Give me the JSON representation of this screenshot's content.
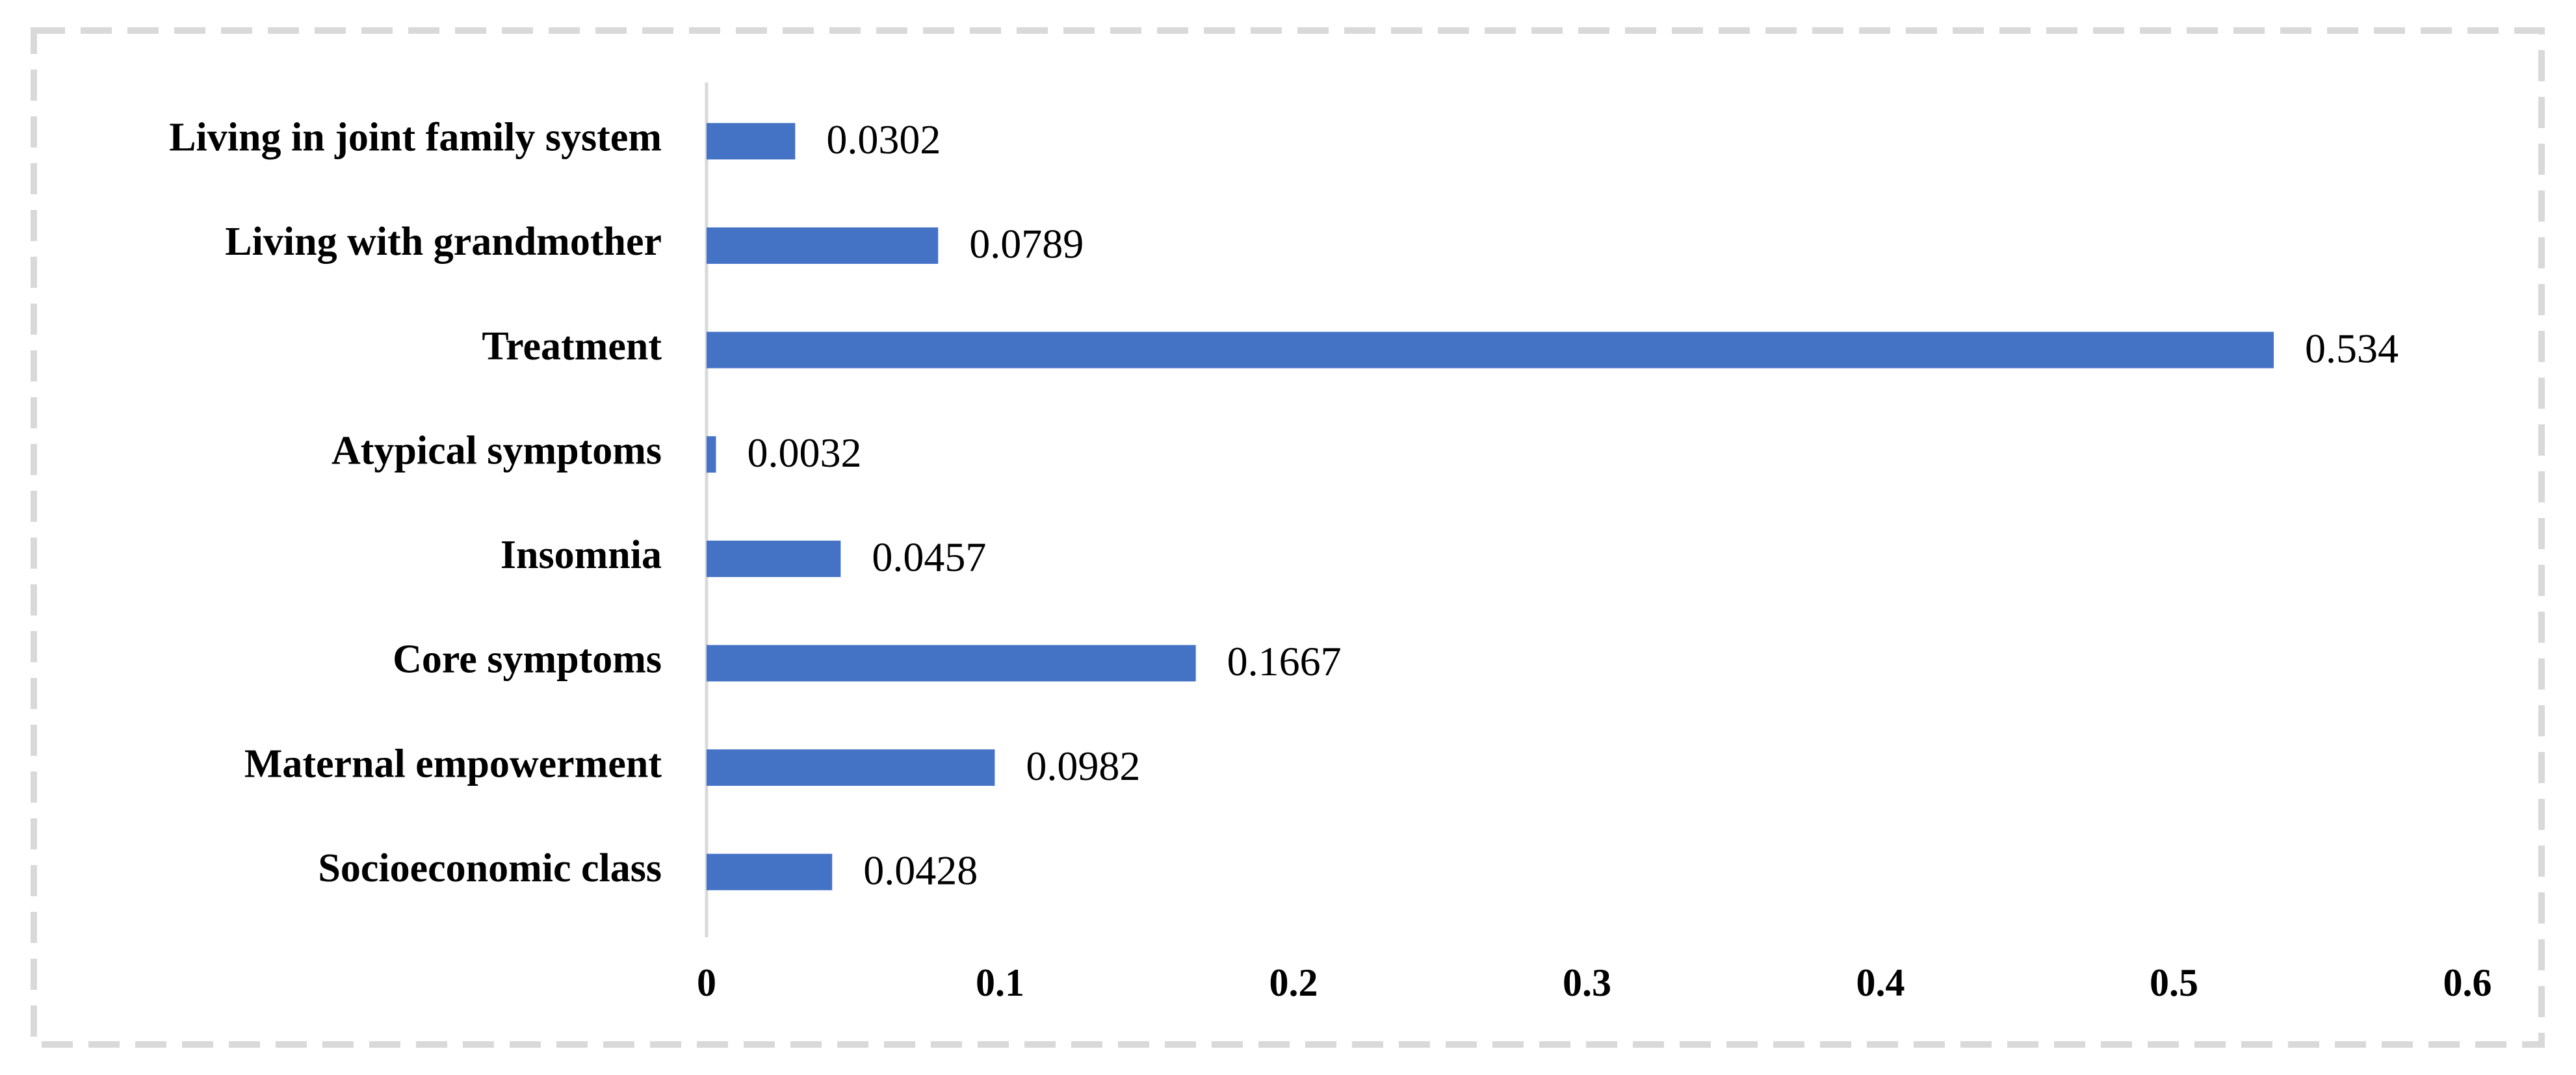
{
  "chart_data": {
    "type": "bar",
    "orientation": "horizontal",
    "categories": [
      "Living in joint family system",
      "Living with grandmother",
      "Treatment",
      "Atypical symptoms",
      "Insomnia",
      "Core symptoms",
      "Maternal empowerment",
      "Socioeconomic class"
    ],
    "values": [
      0.0302,
      0.0789,
      0.534,
      0.0032,
      0.0457,
      0.1667,
      0.0982,
      0.0428
    ],
    "color": "#4472c4",
    "xlim": [
      0,
      0.6
    ],
    "xticks": [
      0,
      0.1,
      0.2,
      0.3,
      0.4,
      0.5,
      0.6
    ],
    "grid": false
  }
}
